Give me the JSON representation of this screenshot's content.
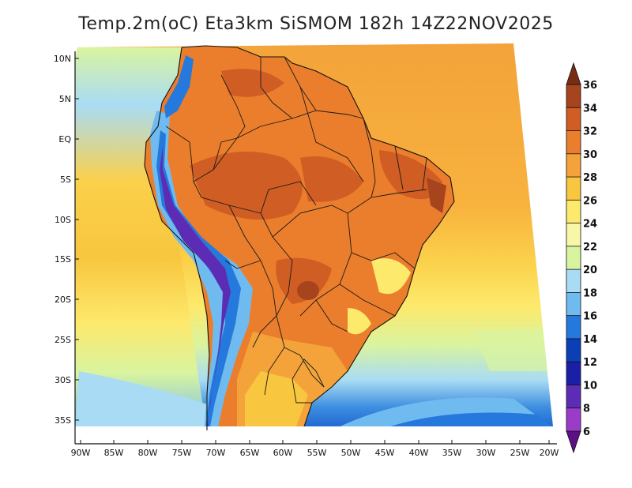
{
  "title": "Temp.2m(oC) Eta3km SiSMOM 182h 14Z22NOV2025",
  "lat_ticks": [
    "10N",
    "5N",
    "EQ",
    "5S",
    "10S",
    "15S",
    "20S",
    "25S",
    "30S",
    "35S"
  ],
  "lon_ticks": [
    "90W",
    "85W",
    "80W",
    "75W",
    "70W",
    "65W",
    "60W",
    "55W",
    "50W",
    "45W",
    "40W",
    "35W",
    "30W",
    "25W",
    "20W"
  ],
  "colorbar": {
    "labels": [
      "36",
      "34",
      "32",
      "30",
      "28",
      "26",
      "24",
      "22",
      "20",
      "18",
      "16",
      "14",
      "12",
      "10",
      "8",
      "6"
    ],
    "colors": [
      "#7a2d12",
      "#a5441d",
      "#d05d24",
      "#ea7e2c",
      "#f3a33a",
      "#f8c63f",
      "#fde96c",
      "#f8f7a8",
      "#d9f4a0",
      "#a9dcf4",
      "#6fbbef",
      "#2679dc",
      "#0b3fb6",
      "#1b1fa6",
      "#5c2db4",
      "#9b3cc8",
      "#5d0f84"
    ]
  }
}
